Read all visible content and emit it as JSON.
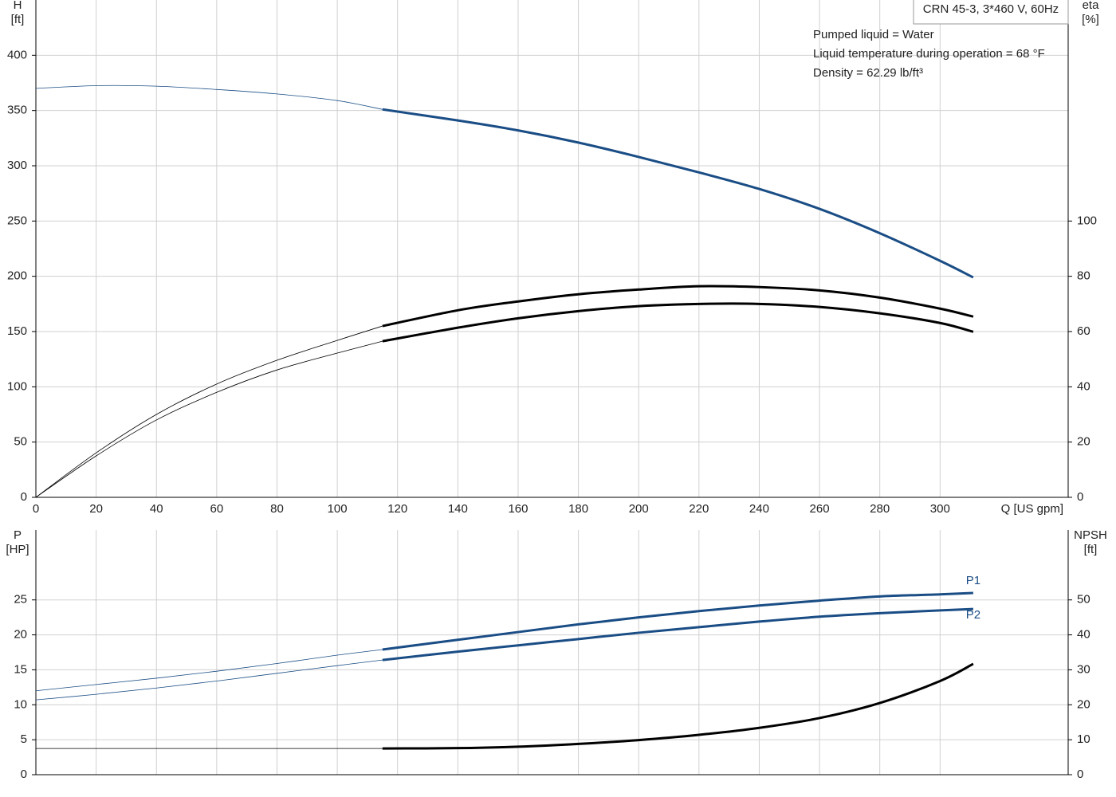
{
  "chart_data": [
    {
      "type": "line",
      "title": "CRN 45-3, 3*460 V, 60Hz",
      "annotations": [
        "Pumped liquid = Water",
        "Liquid temperature during operation = 68 °F",
        "Density = 62.29 lb/ft³"
      ],
      "xlabel": "Q [US gpm]",
      "ylabel": [
        "H",
        "[ft]"
      ],
      "y2label": [
        "eta",
        "[%]"
      ],
      "x": [
        0,
        20,
        40,
        60,
        80,
        100,
        115,
        140,
        160,
        180,
        200,
        220,
        240,
        260,
        280,
        300,
        311
      ],
      "operating_range_start": 115,
      "xlim": [
        0,
        342.5
      ],
      "xticks": [
        0,
        20,
        40,
        60,
        80,
        100,
        120,
        140,
        160,
        180,
        200,
        220,
        240,
        260,
        280,
        300
      ],
      "ylim": [
        0,
        450
      ],
      "yticks": [
        0,
        50,
        100,
        150,
        200,
        250,
        300,
        350,
        400
      ],
      "y2lim": [
        0,
        180
      ],
      "y2ticks": [
        0,
        20,
        40,
        60,
        80,
        100
      ],
      "grid": true,
      "series": [
        {
          "color": "#1a4d85",
          "axis": "y",
          "values": [
            370,
            372.5,
            372,
            369,
            365,
            359,
            351,
            341,
            332,
            321,
            308,
            294,
            279,
            261,
            239,
            214,
            199
          ]
        },
        {
          "color": "#000000",
          "axis": "y2",
          "values": [
            0,
            16.1,
            30,
            41,
            49.6,
            56.8,
            62,
            67.7,
            70.9,
            73.5,
            75.2,
            76.4,
            76.1,
            74.9,
            72.3,
            68.3,
            65.4
          ]
        },
        {
          "color": "#000000",
          "axis": "y2",
          "values": [
            0,
            15,
            28,
            38,
            46.1,
            52.2,
            56.5,
            61.4,
            64.8,
            67.4,
            69.2,
            70,
            70,
            68.9,
            66.6,
            63.1,
            59.9
          ]
        }
      ]
    },
    {
      "type": "line",
      "ylabel": [
        "P",
        "[HP]"
      ],
      "y2label": [
        "NPSH",
        "[ft]"
      ],
      "x": [
        0,
        20,
        40,
        60,
        80,
        100,
        115,
        140,
        160,
        180,
        200,
        220,
        240,
        260,
        280,
        300,
        311
      ],
      "operating_range_start": 115,
      "xlim": [
        0,
        342.5
      ],
      "xticks": [
        0,
        20,
        40,
        60,
        80,
        100,
        120,
        140,
        160,
        180,
        200,
        220,
        240,
        260,
        280,
        300
      ],
      "ylim": [
        0,
        35
      ],
      "yticks": [
        0,
        5,
        10,
        15,
        20,
        25
      ],
      "y2lim": [
        0,
        70
      ],
      "y2ticks": [
        0,
        10,
        20,
        30,
        40,
        50
      ],
      "grid": true,
      "series": [
        {
          "name": "P1",
          "color": "#1a4d85",
          "axis": "y",
          "values": [
            12,
            12.9,
            13.8,
            14.8,
            15.9,
            17.1,
            17.9,
            19.3,
            20.4,
            21.5,
            22.5,
            23.4,
            24.2,
            24.9,
            25.5,
            25.8,
            26
          ]
        },
        {
          "name": "P2",
          "color": "#1a4d85",
          "axis": "y",
          "values": [
            10.7,
            11.5,
            12.4,
            13.4,
            14.5,
            15.6,
            16.4,
            17.6,
            18.5,
            19.4,
            20.3,
            21.1,
            21.9,
            22.6,
            23.1,
            23.5,
            23.7
          ]
        },
        {
          "color": "#000000",
          "axis": "y2",
          "values": [
            7.5,
            7.5,
            7.5,
            7.5,
            7.5,
            7.5,
            7.5,
            7.6,
            8,
            8.8,
            9.9,
            11.4,
            13.4,
            16.2,
            20.5,
            26.8,
            31.7
          ]
        }
      ]
    }
  ]
}
